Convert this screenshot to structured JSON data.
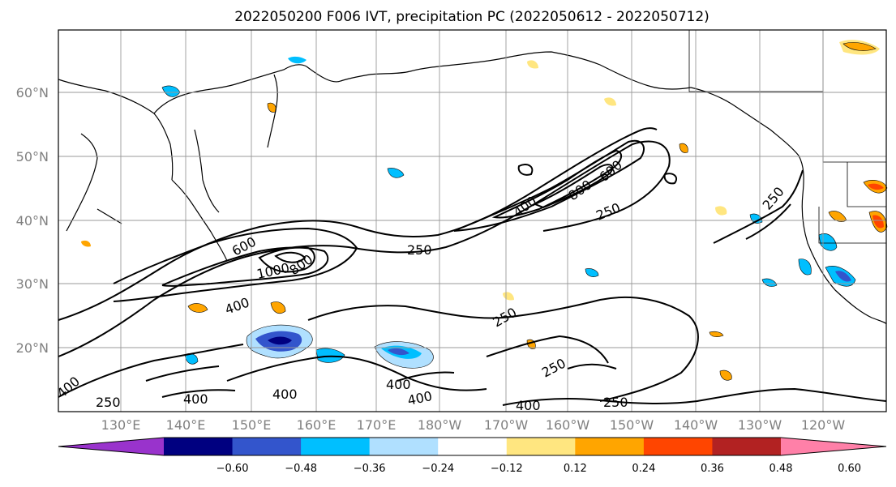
{
  "title": "2022050200 F006 IVT, precipitation PC (2022050612 - 2022050712)",
  "latitude_labels": [
    "60°N",
    "50°N",
    "40°N",
    "30°N",
    "20°N"
  ],
  "longitude_labels": [
    "130°E",
    "140°E",
    "150°E",
    "160°E",
    "170°E",
    "180°W",
    "170°W",
    "160°W",
    "150°W",
    "140°W",
    "130°W",
    "120°W"
  ],
  "colorbar": {
    "colors": [
      "#9933cc",
      "#000080",
      "#3355cc",
      "#00bfff",
      "#b0e0ff",
      "#ffffff",
      "#ffe680",
      "#ffa500",
      "#ff4500",
      "#b22222",
      "#ff80a8"
    ],
    "tick_labels": [
      "-0.60",
      "-0.48",
      "-0.36",
      "-0.24",
      "-0.12",
      "0.12",
      "0.24",
      "0.36",
      "0.48",
      "0.60"
    ],
    "extend": "both"
  },
  "contour_labels": [
    "600",
    "1000",
    "800",
    "400",
    "250",
    "250",
    "400",
    "800",
    "600",
    "250",
    "250",
    "250",
    "250",
    "400",
    "400",
    "400",
    "400",
    "400",
    "250",
    "400",
    "250",
    "400"
  ]
}
